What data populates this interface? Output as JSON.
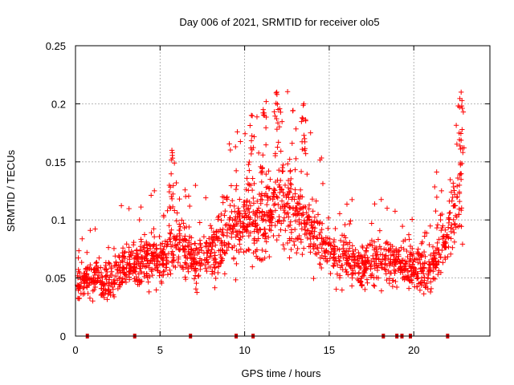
{
  "chart_data": {
    "type": "scatter",
    "title": "Day 006 of 2021, SRMTID for receiver olo5",
    "xlabel": "GPS time / hours",
    "ylabel": "SRMTID / TECUs",
    "xlim": [
      0,
      24.5
    ],
    "ylim": [
      0,
      0.25
    ],
    "x_ticks": [
      0,
      5,
      10,
      15,
      20
    ],
    "y_ticks": [
      0,
      0.05,
      0.1,
      0.15,
      0.2,
      0.25
    ],
    "x_tick_labels": [
      "0",
      "5",
      "10",
      "15",
      "20"
    ],
    "y_tick_labels": [
      "0",
      "0.05",
      "0.1",
      "0.15",
      "0.2",
      "0.25"
    ],
    "grid": true,
    "marker": "+",
    "color": "#ff0000",
    "gap_marker_color": "#cc0000",
    "series": [
      {
        "name": "SRMTID",
        "hours_start": 0.1,
        "hours_end": 22.9,
        "envelope": [
          {
            "x": 0.2,
            "y": 0.045
          },
          {
            "x": 1.0,
            "y": 0.05
          },
          {
            "x": 2.0,
            "y": 0.045
          },
          {
            "x": 3.0,
            "y": 0.06
          },
          {
            "x": 4.0,
            "y": 0.065
          },
          {
            "x": 5.0,
            "y": 0.065
          },
          {
            "x": 6.0,
            "y": 0.085
          },
          {
            "x": 7.0,
            "y": 0.065
          },
          {
            "x": 8.0,
            "y": 0.07
          },
          {
            "x": 9.0,
            "y": 0.09
          },
          {
            "x": 10.0,
            "y": 0.1
          },
          {
            "x": 11.0,
            "y": 0.095
          },
          {
            "x": 12.0,
            "y": 0.12
          },
          {
            "x": 13.0,
            "y": 0.105
          },
          {
            "x": 14.0,
            "y": 0.095
          },
          {
            "x": 15.0,
            "y": 0.075
          },
          {
            "x": 16.0,
            "y": 0.065
          },
          {
            "x": 17.0,
            "y": 0.06
          },
          {
            "x": 18.0,
            "y": 0.065
          },
          {
            "x": 19.0,
            "y": 0.06
          },
          {
            "x": 20.0,
            "y": 0.06
          },
          {
            "x": 21.0,
            "y": 0.055
          },
          {
            "x": 22.0,
            "y": 0.09
          },
          {
            "x": 22.8,
            "y": 0.13
          }
        ],
        "peaks": [
          {
            "x": 5.7,
            "y": 0.16
          },
          {
            "x": 10.4,
            "y": 0.19
          },
          {
            "x": 11.1,
            "y": 0.195
          },
          {
            "x": 11.9,
            "y": 0.21
          },
          {
            "x": 13.5,
            "y": 0.2
          },
          {
            "x": 22.8,
            "y": 0.21
          }
        ]
      }
    ],
    "gap_markers_hours": [
      0.7,
      3.5,
      6.8,
      9.5,
      10.5,
      18.2,
      19.0,
      19.3,
      19.8,
      22.0
    ]
  }
}
